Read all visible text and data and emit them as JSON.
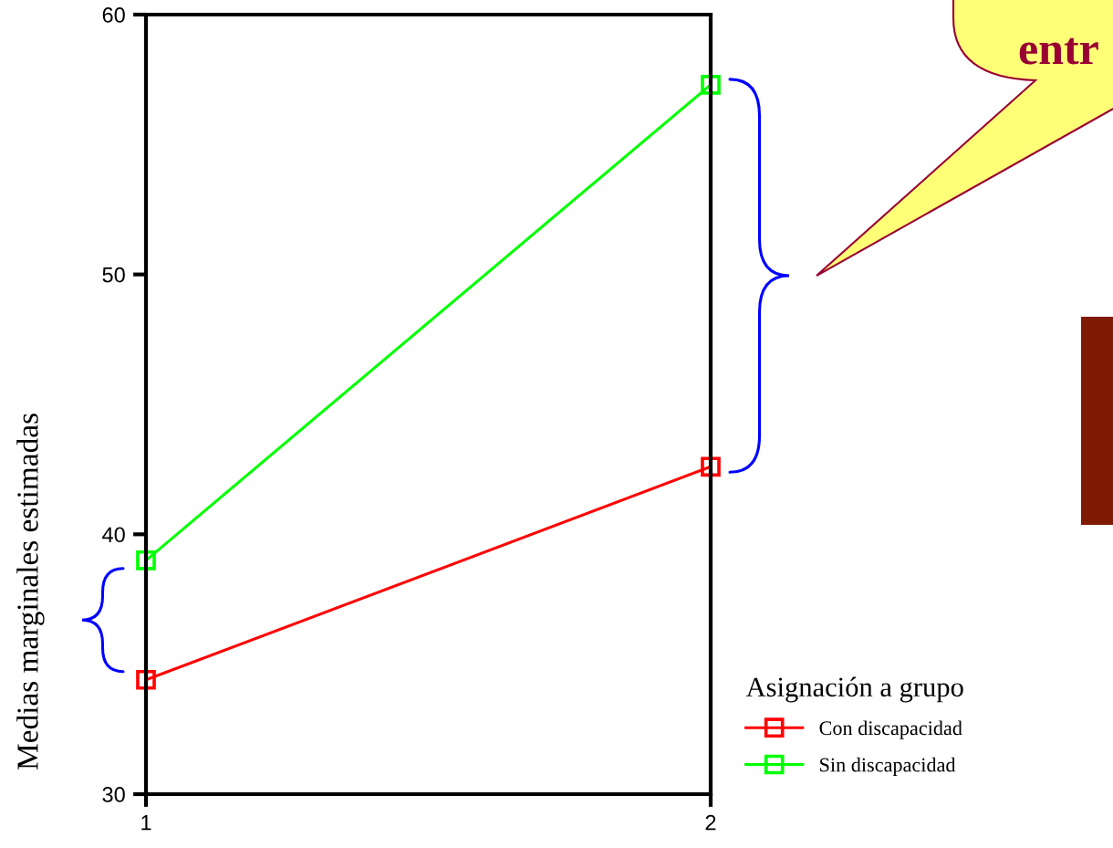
{
  "chart_data": {
    "type": "line",
    "ylabel": "Medias marginales estimadas",
    "legend_title": "Asignación a grupo",
    "x": [
      1,
      2
    ],
    "series": [
      {
        "name": "Con discapacidad",
        "color": "#ff0000",
        "values": [
          34.4,
          42.6
        ]
      },
      {
        "name": "Sin discapacidad",
        "color": "#00ff00",
        "values": [
          39.0,
          57.3
        ]
      }
    ],
    "xlim": [
      1,
      2
    ],
    "xticks": [
      1,
      2
    ],
    "ylim": [
      30,
      60
    ],
    "yticks": [
      30,
      40,
      50,
      60
    ],
    "grid": false,
    "legend": "bottom right",
    "marker": "square",
    "line_style": "solid",
    "annotations": [
      "entr"
    ]
  }
}
